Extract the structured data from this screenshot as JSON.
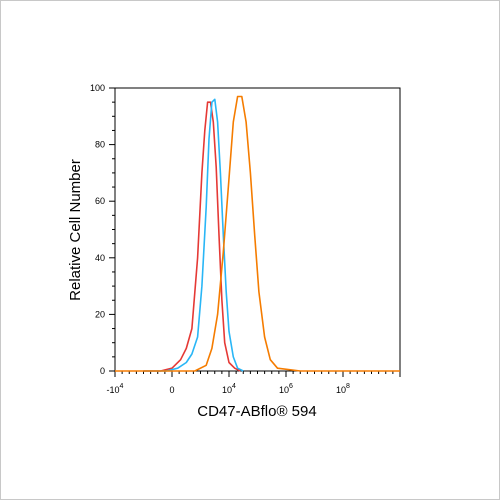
{
  "chart_data": {
    "type": "line",
    "xlabel": "CD47-ABflo® 594",
    "ylabel": "Relative Cell Number",
    "ylim": [
      0,
      100
    ],
    "xlim": [
      -2,
      8
    ],
    "x_tick_labels": [
      {
        "base": "-10",
        "exp": "4"
      },
      {
        "base": "0",
        "exp": ""
      },
      {
        "base": "10",
        "exp": "4"
      },
      {
        "base": "10",
        "exp": "6"
      },
      {
        "base": "10",
        "exp": "8"
      }
    ],
    "x_tick_positions": [
      -2,
      0,
      2,
      4,
      6
    ],
    "y_ticks": [
      0,
      20,
      40,
      60,
      80,
      100
    ],
    "series": [
      {
        "color": "#e53935",
        "x": [
          -1.0,
          -0.4,
          0.0,
          0.3,
          0.5,
          0.7,
          0.9,
          1.05,
          1.15,
          1.25,
          1.35,
          1.45,
          1.55,
          1.65,
          1.75,
          1.85,
          2.0,
          2.2,
          2.4
        ],
        "y": [
          0,
          0,
          1,
          4,
          8,
          15,
          40,
          70,
          85,
          95,
          95,
          88,
          72,
          48,
          25,
          10,
          3,
          1,
          0
        ]
      },
      {
        "color": "#29b6f6",
        "x": [
          -1.0,
          -0.2,
          0.2,
          0.5,
          0.7,
          0.9,
          1.05,
          1.2,
          1.3,
          1.4,
          1.5,
          1.6,
          1.7,
          1.8,
          1.9,
          2.0,
          2.15,
          2.3,
          2.5
        ],
        "y": [
          0,
          0,
          1,
          3,
          6,
          12,
          30,
          58,
          82,
          95,
          96,
          88,
          70,
          48,
          28,
          14,
          5,
          1,
          0
        ]
      },
      {
        "color": "#f57c00",
        "x": [
          -2.0,
          0.8,
          1.2,
          1.4,
          1.6,
          1.8,
          2.0,
          2.15,
          2.3,
          2.45,
          2.6,
          2.75,
          2.9,
          3.05,
          3.25,
          3.45,
          3.7,
          4.5,
          8.0
        ],
        "y": [
          0,
          0,
          2,
          8,
          20,
          42,
          68,
          88,
          97,
          97,
          88,
          70,
          48,
          28,
          12,
          4,
          1,
          0,
          0
        ]
      }
    ]
  }
}
